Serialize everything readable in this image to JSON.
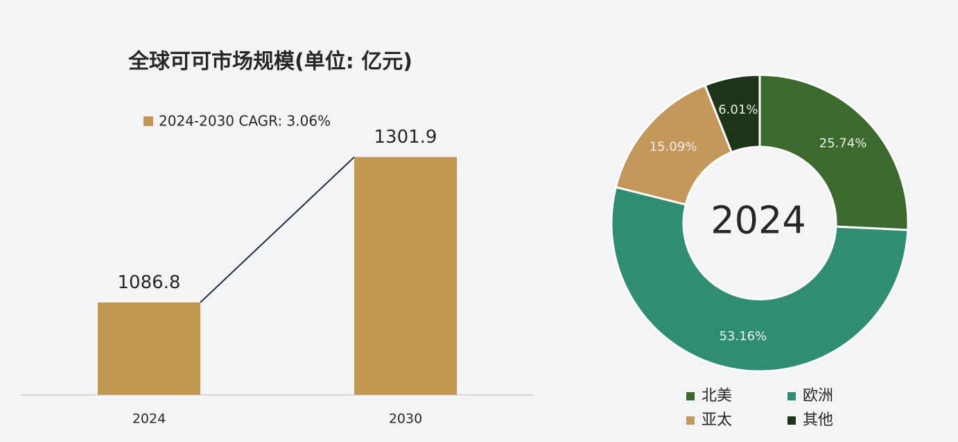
{
  "chart_data": [
    {
      "type": "bar",
      "title": "全球可可市场规模(单位: 亿元)",
      "categories": [
        "2024",
        "2030"
      ],
      "series": [
        {
          "name": "2024-2030 CAGR: 3.06%",
          "color": "#c39651",
          "values": [
            1086.8,
            1301.9
          ]
        }
      ],
      "ylim": [
        950,
        1400
      ],
      "line_color": "#1c2a40"
    },
    {
      "type": "donut",
      "title": "2024",
      "categories": [
        "北美",
        "欧洲",
        "亚太",
        "其他"
      ],
      "values": [
        25.74,
        53.16,
        15.09,
        6.01
      ],
      "value_labels": [
        "25.74%",
        "53.16%",
        "15.09%",
        "6.01%"
      ],
      "colors": [
        "#3b6a2c",
        "#2f8d72",
        "#c4975a",
        "#1d3418"
      ]
    }
  ]
}
